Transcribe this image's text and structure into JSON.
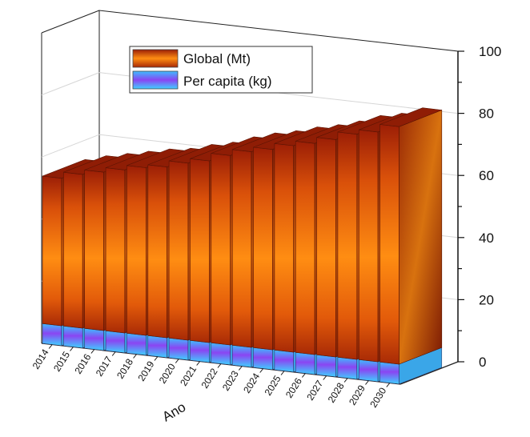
{
  "chart_data": {
    "type": "bar",
    "categories": [
      "2014",
      "2015",
      "2016",
      "2017",
      "2018",
      "2019",
      "2020",
      "2021",
      "2022",
      "2023",
      "2024",
      "2025",
      "2026",
      "2027",
      "2028",
      "2029",
      "2030"
    ],
    "xlabel": "Ano",
    "ylabel": "",
    "ylim": [
      0,
      100
    ],
    "yticks": [
      0,
      20,
      40,
      60,
      80,
      100
    ],
    "grid": true,
    "legend_position": "top-left",
    "series": [
      {
        "name": "Per capita (kg)",
        "color": "#6a6cf0",
        "values": [
          6.4,
          6.4,
          6.4,
          6.4,
          6.4,
          6.4,
          6.4,
          6.4,
          6.4,
          6.4,
          6.4,
          6.4,
          6.4,
          6.4,
          6.4,
          6.4,
          6.4
        ]
      },
      {
        "name": "Global (Mt)",
        "color": "#f07a10",
        "values": [
          47.5,
          49.5,
          51.0,
          52.5,
          54.0,
          55.0,
          57.0,
          58.5,
          61.0,
          63.0,
          64.5,
          66.5,
          68.0,
          70.0,
          72.5,
          74.0,
          76.5
        ]
      }
    ]
  }
}
